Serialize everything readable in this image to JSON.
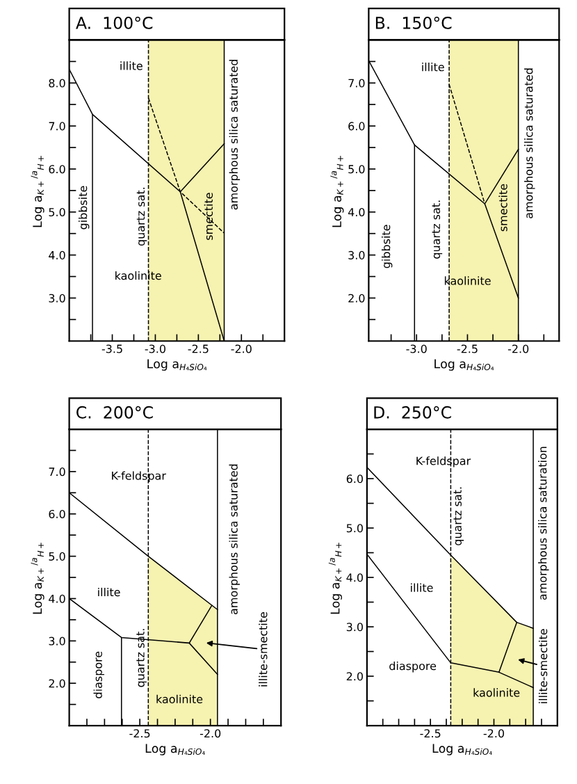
{
  "chart_data": [
    {
      "type": "line",
      "title": "A.  100°C",
      "xlabel": "Log a$_{H₄SiO₄}$",
      "ylabel": "Log a$_{K+}$$^{/a}$$_{H+}$",
      "xlim": [
        -4.0,
        -1.5
      ],
      "ylim": [
        2.0,
        9.0
      ],
      "xticks": [
        {
          "value": -3.75,
          "label": null
        },
        {
          "value": -3.5,
          "label": "-3.5"
        },
        {
          "value": -3.25,
          "label": null
        },
        {
          "value": -3.0,
          "label": "-3.0"
        },
        {
          "value": -2.75,
          "label": null
        },
        {
          "value": -2.5,
          "label": "-2.5"
        },
        {
          "value": -2.25,
          "label": null
        },
        {
          "value": -2.0,
          "label": "-2.0"
        },
        {
          "value": -1.75,
          "label": null
        }
      ],
      "yticks": [
        {
          "value": 2.5,
          "label": null
        },
        {
          "value": 3.0,
          "label": "3.0"
        },
        {
          "value": 3.5,
          "label": null
        },
        {
          "value": 4.0,
          "label": "4.0"
        },
        {
          "value": 4.5,
          "label": null
        },
        {
          "value": 5.0,
          "label": "5.0"
        },
        {
          "value": 5.5,
          "label": null
        },
        {
          "value": 6.0,
          "label": "6.0"
        },
        {
          "value": 6.5,
          "label": null
        },
        {
          "value": 7.0,
          "label": "7.0"
        },
        {
          "value": 7.5,
          "label": null
        },
        {
          "value": 8.0,
          "label": "8.0"
        },
        {
          "value": 8.5,
          "label": null
        }
      ],
      "bands": [
        {
          "axis": "x",
          "from": -3.08,
          "to": -2.2,
          "color": "#f6f2b0"
        }
      ],
      "ref_lines": [
        {
          "axis": "x",
          "value": -3.08,
          "line_style": "dashed"
        },
        {
          "axis": "x",
          "value": -2.2,
          "line_style": "solid"
        }
      ],
      "series": [
        {
          "color": "#000000",
          "line_style": "solid",
          "x": [
            -4.0,
            -3.73,
            -2.71,
            -2.2
          ],
          "values": [
            8.32,
            7.27,
            5.47,
            2.0
          ]
        },
        {
          "color": "#000000",
          "line_style": "solid",
          "x": [
            -3.73,
            -3.73
          ],
          "values": [
            7.27,
            2.0
          ]
        },
        {
          "color": "#000000",
          "line_style": "solid",
          "x": [
            -2.71,
            -2.2
          ],
          "values": [
            5.47,
            6.59
          ]
        },
        {
          "color": "#000000",
          "line_style": "dashed",
          "x": [
            -3.08,
            -2.71,
            -2.2
          ],
          "values": [
            7.65,
            5.47,
            4.51
          ]
        }
      ],
      "annotations": [
        "illite",
        "kaolinite",
        "gibbsite",
        "quartz sat.",
        "smectite",
        "amorphous silica saturated"
      ]
    },
    {
      "type": "line",
      "title": "B.  150°C",
      "xlabel": "Log a$_{H₄SiO₄}$",
      "ylabel": "Log a$_{K+}$$^{/a}$$_{H+}$",
      "xlim": [
        -3.47,
        -1.6
      ],
      "ylim": [
        1.0,
        8.0
      ],
      "xticks": [
        {
          "value": -3.25,
          "label": null
        },
        {
          "value": -3.0,
          "label": "-3.0"
        },
        {
          "value": -2.75,
          "label": null
        },
        {
          "value": -2.5,
          "label": "-2.5"
        },
        {
          "value": -2.25,
          "label": null
        },
        {
          "value": -2.0,
          "label": "-2.0"
        },
        {
          "value": -1.75,
          "label": null
        }
      ],
      "yticks": [
        {
          "value": 1.5,
          "label": null
        },
        {
          "value": 2.0,
          "label": "2.0"
        },
        {
          "value": 2.5,
          "label": null
        },
        {
          "value": 3.0,
          "label": "3.0"
        },
        {
          "value": 3.5,
          "label": null
        },
        {
          "value": 4.0,
          "label": "4.0"
        },
        {
          "value": 4.5,
          "label": null
        },
        {
          "value": 5.0,
          "label": "5.0"
        },
        {
          "value": 5.5,
          "label": null
        },
        {
          "value": 6.0,
          "label": "6.0"
        },
        {
          "value": 6.5,
          "label": null
        },
        {
          "value": 7.0,
          "label": "7.0"
        },
        {
          "value": 7.5,
          "label": null
        }
      ],
      "bands": [
        {
          "axis": "x",
          "from": -2.68,
          "to": -2.0,
          "color": "#f6f2b0"
        }
      ],
      "ref_lines": [
        {
          "axis": "x",
          "value": -2.68,
          "line_style": "dashed"
        },
        {
          "axis": "x",
          "value": -2.0,
          "line_style": "solid"
        }
      ],
      "series": [
        {
          "color": "#000000",
          "line_style": "solid",
          "x": [
            -3.47,
            -3.02,
            -2.33,
            -2.0
          ],
          "values": [
            7.52,
            5.56,
            4.19,
            2.0
          ]
        },
        {
          "color": "#000000",
          "line_style": "solid",
          "x": [
            -3.02,
            -3.02
          ],
          "values": [
            5.56,
            1.0
          ]
        },
        {
          "color": "#000000",
          "line_style": "solid",
          "x": [
            -2.33,
            -2.0
          ],
          "values": [
            4.19,
            5.46
          ]
        },
        {
          "color": "#000000",
          "line_style": "dashed",
          "x": [
            -2.68,
            -2.33
          ],
          "values": [
            6.97,
            4.19
          ]
        }
      ],
      "annotations": [
        "illite",
        "kaolinite",
        "gibbsite",
        "quartz sat.",
        "smectite",
        "amorphous silica saturated"
      ]
    },
    {
      "type": "line",
      "title": "C.  200°C",
      "xlabel": "Log a$_{H₄SiO₄}$",
      "ylabel": "Log a$_{K+}$$^{/a}$$_{H+}$",
      "xlim": [
        -3.0,
        -1.5
      ],
      "ylim": [
        1.0,
        8.0
      ],
      "xticks": [
        {
          "value": -2.875,
          "label": null
        },
        {
          "value": -2.75,
          "label": null
        },
        {
          "value": -2.625,
          "label": null
        },
        {
          "value": -2.5,
          "label": "-2.5"
        },
        {
          "value": -2.375,
          "label": null
        },
        {
          "value": -2.25,
          "label": null
        },
        {
          "value": -2.125,
          "label": null
        },
        {
          "value": -2.0,
          "label": "-2.0"
        },
        {
          "value": -1.875,
          "label": null
        },
        {
          "value": -1.75,
          "label": null
        },
        {
          "value": -1.625,
          "label": null
        }
      ],
      "yticks": [
        {
          "value": 1.5,
          "label": null
        },
        {
          "value": 2.0,
          "label": "2.0"
        },
        {
          "value": 2.5,
          "label": null
        },
        {
          "value": 3.0,
          "label": "3.0"
        },
        {
          "value": 3.5,
          "label": null
        },
        {
          "value": 4.0,
          "label": "4.0"
        },
        {
          "value": 4.5,
          "label": null
        },
        {
          "value": 5.0,
          "label": "5.0"
        },
        {
          "value": 5.5,
          "label": null
        },
        {
          "value": 6.0,
          "label": "6.0"
        },
        {
          "value": 6.5,
          "label": null
        },
        {
          "value": 7.0,
          "label": "7.0"
        },
        {
          "value": 7.5,
          "label": null
        }
      ],
      "ref_lines": [
        {
          "axis": "x",
          "value": -2.44,
          "line_style": "dashed"
        },
        {
          "axis": "x",
          "value": -1.95,
          "line_style": "solid"
        }
      ],
      "series": [
        {
          "type": "area",
          "color": "#f6f2b0",
          "x": [
            -2.44,
            -1.95
          ],
          "values": [
            5.0,
            3.74
          ]
        },
        {
          "color": "#000000",
          "line_style": "solid",
          "x": [
            -3.0,
            -2.44,
            -1.95
          ],
          "values": [
            6.5,
            5.0,
            3.74
          ]
        },
        {
          "color": "#000000",
          "line_style": "solid",
          "x": [
            -3.0,
            -2.63,
            -2.15,
            -1.95
          ],
          "values": [
            4.0,
            3.08,
            2.95,
            2.21
          ]
        },
        {
          "color": "#000000",
          "line_style": "solid",
          "x": [
            -2.63,
            -2.63
          ],
          "values": [
            3.08,
            1.0
          ]
        },
        {
          "color": "#000000",
          "line_style": "solid",
          "x": [
            -2.15,
            -1.99
          ],
          "values": [
            2.95,
            3.84
          ]
        }
      ],
      "annotations": [
        "K-feldspar",
        "illite",
        "kaolinite",
        "diaspore",
        "quartz sat.",
        "amorphous silica saturated",
        "illite-smectite"
      ]
    },
    {
      "type": "line",
      "title": "D.  250°C",
      "xlabel": "Log a$_{H₄SiO₄}$",
      "ylabel": "Log a$_{K+}$$^{/a}$$_{H+}$",
      "xlim": [
        -3.0,
        -1.5
      ],
      "ylim": [
        1.0,
        7.0
      ],
      "xticks": [
        {
          "value": -2.875,
          "label": null
        },
        {
          "value": -2.75,
          "label": null
        },
        {
          "value": -2.625,
          "label": null
        },
        {
          "value": -2.5,
          "label": "-2.5"
        },
        {
          "value": -2.375,
          "label": null
        },
        {
          "value": -2.25,
          "label": null
        },
        {
          "value": -2.125,
          "label": null
        },
        {
          "value": -2.0,
          "label": "-2.0"
        },
        {
          "value": -1.875,
          "label": null
        },
        {
          "value": -1.75,
          "label": null
        },
        {
          "value": -1.625,
          "label": null
        }
      ],
      "yticks": [
        {
          "value": 1.5,
          "label": null
        },
        {
          "value": 2.0,
          "label": "2.0"
        },
        {
          "value": 2.5,
          "label": null
        },
        {
          "value": 3.0,
          "label": "3.0"
        },
        {
          "value": 3.5,
          "label": null
        },
        {
          "value": 4.0,
          "label": "4.0"
        },
        {
          "value": 4.5,
          "label": null
        },
        {
          "value": 5.0,
          "label": "5.0"
        },
        {
          "value": 5.5,
          "label": null
        },
        {
          "value": 6.0,
          "label": "6.0"
        },
        {
          "value": 6.5,
          "label": null
        }
      ],
      "ref_lines": [
        {
          "axis": "x",
          "value": -2.34,
          "line_style": "dashed"
        },
        {
          "axis": "x",
          "value": -1.69,
          "line_style": "solid"
        }
      ],
      "series": [
        {
          "type": "area",
          "color": "#f6f2b0",
          "x": [
            -2.34,
            -1.82,
            -1.69
          ],
          "values": [
            4.45,
            3.09,
            2.97
          ]
        },
        {
          "color": "#000000",
          "line_style": "solid",
          "x": [
            -3.0,
            -2.34,
            -1.82,
            -1.69
          ],
          "values": [
            6.23,
            4.45,
            3.09,
            2.97
          ]
        },
        {
          "color": "#000000",
          "line_style": "solid",
          "x": [
            -3.0,
            -2.34,
            -1.96,
            -1.69
          ],
          "values": [
            4.47,
            2.27,
            2.08,
            1.77
          ]
        },
        {
          "color": "#000000",
          "line_style": "solid",
          "x": [
            -1.96,
            -1.82
          ],
          "values": [
            2.08,
            3.09
          ]
        }
      ],
      "annotations": [
        "K-feldspar",
        "illite",
        "diaspore",
        "kaolinite",
        "quartz sat.",
        "amorphous silica saturation",
        "illite-smectite"
      ]
    }
  ]
}
